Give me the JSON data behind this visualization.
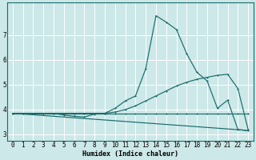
{
  "bg_color": "#cce8e8",
  "grid_color": "#b0cfcf",
  "line_color": "#1a6b6b",
  "xlabel": "Humidex (Indice chaleur)",
  "xlim": [
    -0.5,
    23.5
  ],
  "ylim": [
    2.75,
    8.3
  ],
  "xticks": [
    0,
    1,
    2,
    3,
    4,
    5,
    6,
    7,
    8,
    9,
    10,
    11,
    12,
    13,
    14,
    15,
    16,
    17,
    18,
    19,
    20,
    21,
    22,
    23
  ],
  "yticks": [
    3,
    4,
    5,
    6,
    7
  ],
  "lines": [
    {
      "x": [
        0,
        1,
        2,
        3,
        4,
        5,
        6,
        7,
        8,
        9,
        10,
        11,
        12,
        13,
        14,
        15,
        16,
        17,
        18,
        19,
        20,
        21,
        22,
        23
      ],
      "y": [
        3.85,
        3.85,
        3.85,
        3.85,
        3.85,
        3.85,
        3.85,
        3.85,
        3.85,
        3.85,
        3.85,
        3.85,
        3.85,
        3.85,
        3.85,
        3.85,
        3.85,
        3.85,
        3.85,
        3.85,
        3.85,
        3.85,
        3.85,
        3.85
      ],
      "marker": true,
      "lw": 0.85
    },
    {
      "x": [
        0,
        1,
        2,
        3,
        4,
        5,
        6,
        7,
        8,
        9,
        10,
        11,
        12,
        13,
        14,
        15,
        16,
        17,
        18,
        19,
        20,
        21,
        22,
        23
      ],
      "y": [
        3.85,
        3.82,
        3.79,
        3.76,
        3.73,
        3.7,
        3.67,
        3.64,
        3.61,
        3.58,
        3.55,
        3.52,
        3.49,
        3.46,
        3.43,
        3.4,
        3.37,
        3.34,
        3.31,
        3.28,
        3.25,
        3.22,
        3.19,
        3.15
      ],
      "marker": false,
      "lw": 0.85
    },
    {
      "x": [
        0,
        1,
        2,
        3,
        4,
        5,
        6,
        7,
        8,
        9,
        10,
        11,
        12,
        13,
        14,
        15,
        16,
        17,
        18,
        19,
        20,
        21,
        22,
        23
      ],
      "y": [
        3.85,
        3.85,
        3.85,
        3.85,
        3.85,
        3.78,
        3.73,
        3.7,
        3.82,
        3.85,
        4.05,
        4.35,
        4.55,
        5.65,
        7.78,
        7.52,
        7.22,
        6.25,
        5.5,
        5.15,
        4.05,
        4.38,
        3.2,
        3.15
      ],
      "marker": true,
      "lw": 0.85
    },
    {
      "x": [
        0,
        1,
        2,
        3,
        4,
        5,
        6,
        7,
        8,
        9,
        10,
        11,
        12,
        13,
        14,
        15,
        16,
        17,
        18,
        19,
        20,
        21,
        22,
        23
      ],
      "y": [
        3.85,
        3.85,
        3.85,
        3.85,
        3.85,
        3.85,
        3.85,
        3.85,
        3.85,
        3.85,
        3.9,
        4.0,
        4.15,
        4.35,
        4.55,
        4.75,
        4.95,
        5.1,
        5.22,
        5.3,
        5.38,
        5.42,
        4.85,
        3.2
      ],
      "marker": true,
      "lw": 0.85
    }
  ]
}
